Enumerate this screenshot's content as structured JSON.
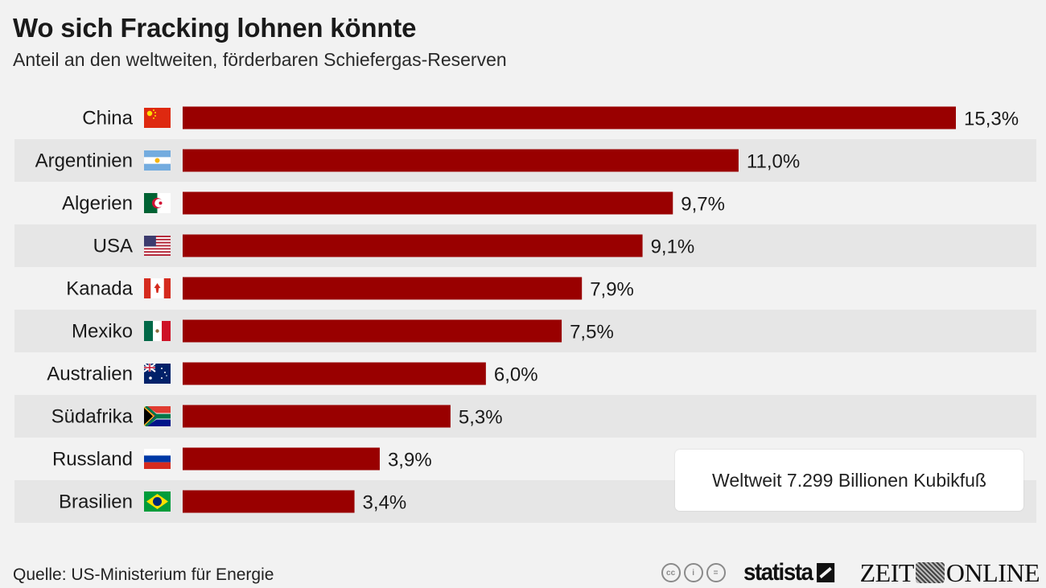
{
  "header": {
    "title": "Wo sich Fracking lohnen könnte",
    "subtitle": "Anteil an den weltweiten, förderbaren Schiefergas-Reserven"
  },
  "chart_data": {
    "type": "bar",
    "orientation": "horizontal",
    "title": "Wo sich Fracking lohnen könnte",
    "subtitle": "Anteil an den weltweiten, förderbaren Schiefergas-Reserven",
    "xlabel": "",
    "ylabel": "",
    "unit": "%",
    "xlim": [
      0,
      15.3
    ],
    "grid": false,
    "categories": [
      "China",
      "Argentinien",
      "Algerien",
      "USA",
      "Kanada",
      "Mexiko",
      "Australien",
      "Südafrika",
      "Russland",
      "Brasilien"
    ],
    "flags": [
      "china-flag-icon",
      "argentina-flag-icon",
      "algeria-flag-icon",
      "usa-flag-icon",
      "canada-flag-icon",
      "mexico-flag-icon",
      "australia-flag-icon",
      "south-africa-flag-icon",
      "russia-flag-icon",
      "brazil-flag-icon"
    ],
    "values": [
      15.3,
      11.0,
      9.7,
      9.1,
      7.9,
      7.5,
      6.0,
      5.3,
      3.9,
      3.4
    ],
    "value_labels": [
      "15,3%",
      "11,0%",
      "9,7%",
      "9,1%",
      "7,9%",
      "7,5%",
      "6,0%",
      "5,3%",
      "3,9%",
      "3,4%"
    ],
    "bar_color": "#990000",
    "annotation": "Weltweit 7.299 Billionen Kubikfuß"
  },
  "footer": {
    "source": "Quelle: US-Ministerium für Energie",
    "license_icons": [
      "cc-icon",
      "by-icon",
      "nd-icon"
    ],
    "license_icon_glyphs": [
      "cc",
      "i",
      "="
    ],
    "brand_statista": "statista",
    "brand_zeit_left": "ZEIT",
    "brand_zeit_right": "ONLINE"
  },
  "colors": {
    "background": "#f2f2f2",
    "band": "#e6e6e6",
    "bar": "#990000"
  }
}
